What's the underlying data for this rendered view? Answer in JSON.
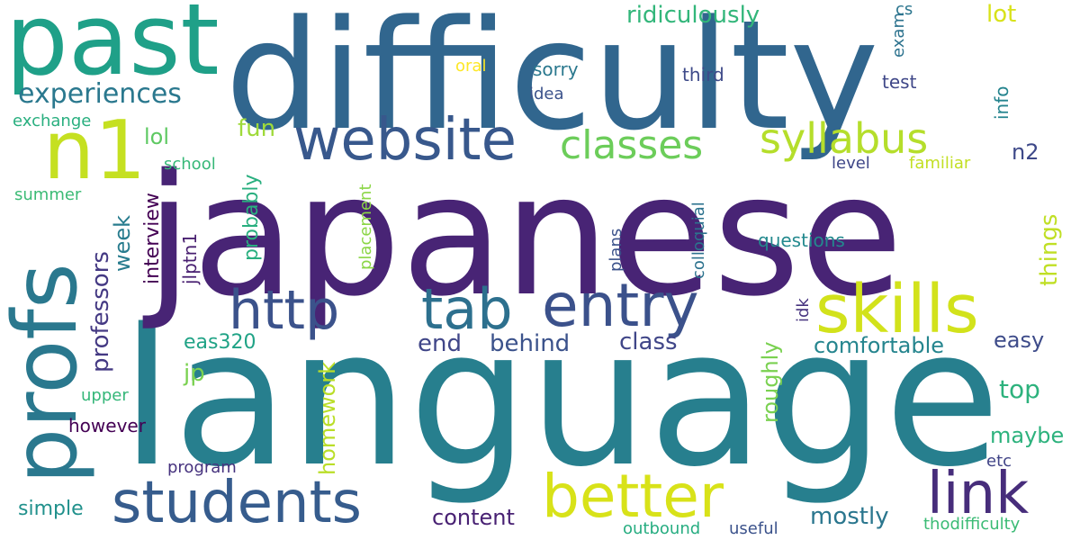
{
  "words": [
    {
      "text": "language",
      "color": "#277f8e"
    },
    {
      "text": "japanese",
      "color": "#482475"
    },
    {
      "text": "difficulty",
      "color": "#31668e"
    },
    {
      "text": "past",
      "color": "#1fa088"
    },
    {
      "text": "profs",
      "color": "#2a788e"
    },
    {
      "text": "website",
      "color": "#38588c"
    },
    {
      "text": "n1",
      "color": "#c5e021"
    },
    {
      "text": "students",
      "color": "#365c8d"
    },
    {
      "text": "better",
      "color": "#d8e219"
    },
    {
      "text": "skills",
      "color": "#d2e21b"
    },
    {
      "text": "link",
      "color": "#472d7b"
    },
    {
      "text": "entry",
      "color": "#3b518b"
    },
    {
      "text": "http",
      "color": "#3b528b"
    },
    {
      "text": "tab",
      "color": "#2d708e"
    },
    {
      "text": "classes",
      "color": "#6ccd5a"
    },
    {
      "text": "syllabus",
      "color": "#b5de2b"
    },
    {
      "text": "experiences",
      "color": "#2a788e"
    },
    {
      "text": "ridiculously",
      "color": "#32b67a"
    },
    {
      "text": "lot",
      "color": "#d8e219"
    },
    {
      "text": "cs",
      "color": "#2b758e"
    },
    {
      "text": "exam",
      "color": "#2c728e"
    },
    {
      "text": "oral",
      "color": "#fde725"
    },
    {
      "text": "sorry",
      "color": "#2a788e"
    },
    {
      "text": "third",
      "color": "#3e4a89"
    },
    {
      "text": "test",
      "color": "#3f4788"
    },
    {
      "text": "info",
      "color": "#25848e"
    },
    {
      "text": "exchange",
      "color": "#29af7f"
    },
    {
      "text": "idea",
      "color": "#3b528b"
    },
    {
      "text": "lol",
      "color": "#5ec962"
    },
    {
      "text": "fun",
      "color": "#9fda3a"
    },
    {
      "text": "school",
      "color": "#37b878"
    },
    {
      "text": "n2",
      "color": "#3e4989"
    },
    {
      "text": "level",
      "color": "#3f4788"
    },
    {
      "text": "familiar",
      "color": "#c2df23"
    },
    {
      "text": "summer",
      "color": "#3bbb75"
    },
    {
      "text": "interview",
      "color": "#440154"
    },
    {
      "text": "probably",
      "color": "#29af7f"
    },
    {
      "text": "placement",
      "color": "#8bd646"
    },
    {
      "text": "plans",
      "color": "#3b528b"
    },
    {
      "text": "colloquial",
      "color": "#2c728e"
    },
    {
      "text": "questions",
      "color": "#23898e"
    },
    {
      "text": "things",
      "color": "#c0df25"
    },
    {
      "text": "week",
      "color": "#287c8e"
    },
    {
      "text": "professors",
      "color": "#443983"
    },
    {
      "text": "jlptn1",
      "color": "#481f70"
    },
    {
      "text": "idk",
      "color": "#46337f"
    },
    {
      "text": "eas320",
      "color": "#20a386"
    },
    {
      "text": "end",
      "color": "#404688"
    },
    {
      "text": "behind",
      "color": "#3b528b"
    },
    {
      "text": "class",
      "color": "#404688"
    },
    {
      "text": "comfortable",
      "color": "#25858e"
    },
    {
      "text": "easy",
      "color": "#3e4c8a"
    },
    {
      "text": "jp",
      "color": "#7ad151"
    },
    {
      "text": "homework",
      "color": "#bade28"
    },
    {
      "text": "roughly",
      "color": "#7ad151"
    },
    {
      "text": "top",
      "color": "#2db27d"
    },
    {
      "text": "upper",
      "color": "#35b779"
    },
    {
      "text": "however",
      "color": "#440154"
    },
    {
      "text": "maybe",
      "color": "#2db27d"
    },
    {
      "text": "program",
      "color": "#46327e"
    },
    {
      "text": "etc",
      "color": "#414487"
    },
    {
      "text": "simple",
      "color": "#21918c"
    },
    {
      "text": "content",
      "color": "#482173"
    },
    {
      "text": "mostly",
      "color": "#2a768e"
    },
    {
      "text": "outbound",
      "color": "#27ad81"
    },
    {
      "text": "useful",
      "color": "#3b528b"
    },
    {
      "text": "thodifficulty",
      "color": "#3bbb75"
    }
  ]
}
